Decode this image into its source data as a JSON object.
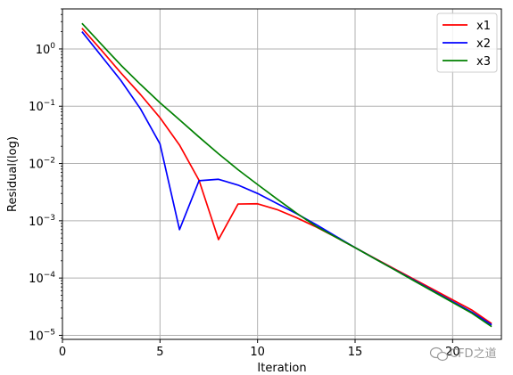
{
  "chart_data": {
    "type": "line",
    "xlabel": "Iteration",
    "ylabel": "Residual(log)",
    "yscale": "log",
    "xlim": [
      0,
      22.5
    ],
    "ylim": [
      8.5e-06,
      5
    ],
    "x_ticks": [
      0,
      5,
      10,
      15,
      20
    ],
    "x_tick_labels": [
      "0",
      "5",
      "10",
      "15",
      "20"
    ],
    "y_ticks": [
      1e-05,
      0.0001,
      0.001,
      0.01,
      0.1,
      1
    ],
    "y_tick_labels": [
      {
        "base": "10",
        "exp": "−5"
      },
      {
        "base": "10",
        "exp": "−4"
      },
      {
        "base": "10",
        "exp": "−3"
      },
      {
        "base": "10",
        "exp": "−2"
      },
      {
        "base": "10",
        "exp": "−1"
      },
      {
        "base": "10",
        "exp": "0"
      }
    ],
    "grid": true,
    "legend_position": "top-right",
    "series": [
      {
        "name": "x1",
        "color": "#ff0000",
        "x": [
          1,
          2,
          3,
          4,
          5,
          6,
          7,
          8,
          9,
          10,
          11,
          12,
          13,
          14,
          15,
          16,
          17,
          18,
          19,
          20,
          21,
          22
        ],
        "y": [
          2.3,
          0.95,
          0.38,
          0.16,
          0.063,
          0.021,
          0.0051,
          0.00047,
          0.00196,
          0.00198,
          0.00157,
          0.00113,
          0.00078,
          0.00052,
          0.00034,
          0.000222,
          0.000146,
          9.62e-05,
          6.33e-05,
          4.16e-05,
          2.74e-05,
          1.6e-05
        ]
      },
      {
        "name": "x2",
        "color": "#0000ff",
        "x": [
          1,
          2,
          3,
          4,
          5,
          6,
          7,
          8,
          9,
          10,
          11,
          12,
          13,
          14,
          15,
          16,
          17,
          18,
          19,
          20,
          21,
          22
        ],
        "y": [
          2.0,
          0.75,
          0.28,
          0.09,
          0.022,
          0.0007,
          0.005,
          0.0053,
          0.0042,
          0.003,
          0.002,
          0.00133,
          0.00086,
          0.00054,
          0.00034,
          0.000219,
          0.000142,
          9.22e-05,
          5.98e-05,
          3.88e-05,
          2.52e-05,
          1.52e-05
        ]
      },
      {
        "name": "x3",
        "color": "#008000",
        "x": [
          1,
          2,
          3,
          4,
          5,
          6,
          7,
          8,
          9,
          10,
          11,
          12,
          13,
          14,
          15,
          16,
          17,
          18,
          19,
          20,
          21,
          22
        ],
        "y": [
          2.8,
          1.2,
          0.52,
          0.24,
          0.115,
          0.058,
          0.029,
          0.0148,
          0.0078,
          0.0043,
          0.0024,
          0.00136,
          0.0008,
          0.00052,
          0.00034,
          0.000218,
          0.000141,
          9.05e-05,
          5.83e-05,
          3.75e-05,
          2.42e-05,
          1.42e-05
        ]
      }
    ]
  },
  "watermark": {
    "text": "CFD之道",
    "icon": "wechat-icon"
  }
}
